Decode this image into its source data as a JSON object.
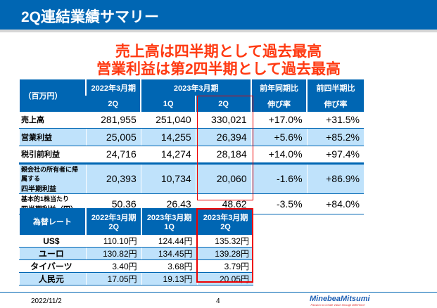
{
  "title": "2Q連結業績サマリー",
  "headline": [
    "売上高は四半期として過去最高",
    "営業利益は第2四半期として過去最高"
  ],
  "t1": {
    "unit": "（百万円）",
    "fy22": "2022年3月期",
    "fy23": "2023年3月期",
    "yoy": [
      "前年同期比",
      "伸び率"
    ],
    "qoq": [
      "前四半期比",
      "伸び率"
    ],
    "q": [
      "2Q",
      "1Q",
      "2Q"
    ],
    "rows": [
      {
        "label": "売上高",
        "v": [
          "281,955",
          "251,040",
          "330,021",
          "+17.0%",
          "+31.5%"
        ]
      },
      {
        "label": "営業利益",
        "v": [
          "25,005",
          "14,255",
          "26,394",
          "+5.6%",
          "+85.2%"
        ]
      },
      {
        "label": "税引前利益",
        "v": [
          "24,716",
          "14,274",
          "28,184",
          "+14.0%",
          "+97.4%"
        ]
      },
      {
        "label": "親会社の所有者に帰属する",
        "label2": "四半期利益",
        "v": [
          "20,393",
          "10,734",
          "20,060",
          "-1.6%",
          "+86.9%"
        ]
      },
      {
        "label": "基本的1株当たり",
        "label2": "四半期利益（円）",
        "v": [
          "50.36",
          "26.43",
          "48.62",
          "-3.5%",
          "+84.0%"
        ]
      }
    ]
  },
  "t2": {
    "head": "為替レート",
    "cols": [
      [
        "2022年3月期",
        "2Q"
      ],
      [
        "2023年3月期",
        "1Q"
      ],
      [
        "2023年3月期",
        "2Q"
      ]
    ],
    "rows": [
      {
        "label": "US$",
        "v": [
          "110.10円",
          "124.44円",
          "135.32円"
        ]
      },
      {
        "label": "ユーロ",
        "v": [
          "130.82円",
          "134.45円",
          "139.28円"
        ]
      },
      {
        "label": "タイバーツ",
        "v": [
          "3.40円",
          "3.68円",
          "3.79円"
        ]
      },
      {
        "label": "人民元",
        "v": [
          "17.05円",
          "19.13円",
          "20.05円"
        ]
      }
    ]
  },
  "footer": {
    "date": "2022/11/2",
    "page": "4",
    "logo": "MinebeaMitsumi",
    "tagline": "Passion to Create Value through Difference"
  }
}
